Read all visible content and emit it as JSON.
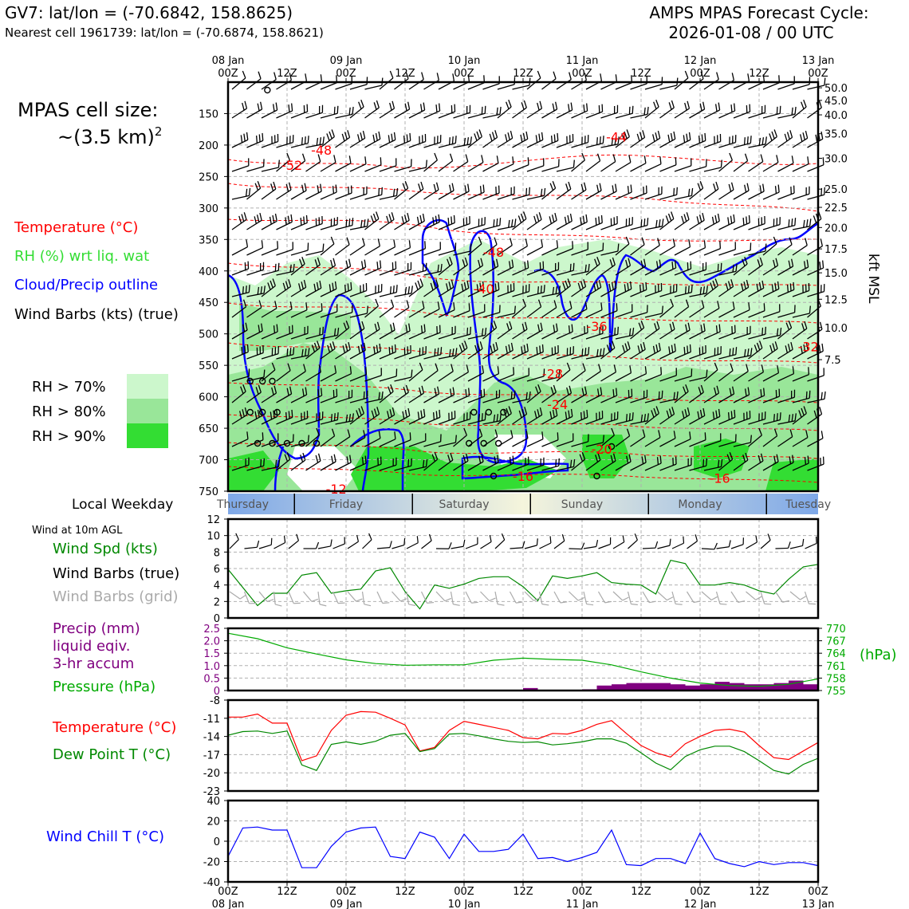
{
  "header": {
    "left_line1": "GV7: lat/lon = (-70.6842, 158.8625)",
    "left_line2": "Nearest cell 1961739: lat/lon = (-70.6874, 158.8621)",
    "right_line1": "AMPS MPAS Forecast Cycle:",
    "right_line2": "2026-01-08 / 00 UTC"
  },
  "side": {
    "cell_size_line1": "MPAS cell size:",
    "cell_size_line2": "~(3.5 km)",
    "cell_size_sup": "2",
    "legend_temp": "Temperature (°C)",
    "legend_rh": "RH (%) wrt liq. wat",
    "legend_cloud": "Cloud/Precip outline",
    "legend_wind": "Wind Barbs (kts) (true)",
    "rh70": "RH > 70%",
    "rh80": "RH > 80%",
    "rh90": "RH > 90%",
    "local_weekday": "Local Weekday",
    "wind10m": "Wind at 10m AGL",
    "wind_spd": "Wind Spd (kts)",
    "wind_barbs_true": "Wind Barbs (true)",
    "wind_barbs_grid": "Wind Barbs (grid)",
    "precip_l1": "Precip (mm)",
    "precip_l2": "liquid eqiv.",
    "precip_l3": "3-hr accum",
    "pressure": "Pressure (hPa)",
    "temperature": "Temperature (°C)",
    "dewpoint": "Dew Point T (°C)",
    "windchill": "Wind Chill T (°C)",
    "kft": "kft MSL",
    "hpa": "(hPa)"
  },
  "colors": {
    "temp": "#ff0000",
    "rh_label": "#33dd33",
    "cloud": "#0000ff",
    "rh70": "#ccf7cc",
    "rh80": "#99e699",
    "rh90": "#33dd33",
    "green_line": "#008800",
    "pressure_line": "#00aa00",
    "precip": "#800080",
    "grey": "#aaaaaa"
  },
  "time_axis": {
    "top_labels": [
      {
        "t": 0,
        "l1": "08 Jan",
        "l2": "00Z"
      },
      {
        "t": 12,
        "l1": "",
        "l2": "12Z"
      },
      {
        "t": 24,
        "l1": "09 Jan",
        "l2": "00Z"
      },
      {
        "t": 36,
        "l1": "",
        "l2": "12Z"
      },
      {
        "t": 48,
        "l1": "10 Jan",
        "l2": "00Z"
      },
      {
        "t": 60,
        "l1": "",
        "l2": "12Z"
      },
      {
        "t": 72,
        "l1": "11 Jan",
        "l2": "00Z"
      },
      {
        "t": 84,
        "l1": "",
        "l2": "12Z"
      },
      {
        "t": 96,
        "l1": "12 Jan",
        "l2": "00Z"
      },
      {
        "t": 108,
        "l1": "",
        "l2": "12Z"
      },
      {
        "t": 120,
        "l1": "13 Jan",
        "l2": "00Z"
      }
    ],
    "bottom_labels": [
      {
        "t": 0,
        "l1": "00Z",
        "l2": "08 Jan"
      },
      {
        "t": 12,
        "l1": "12Z",
        "l2": ""
      },
      {
        "t": 24,
        "l1": "00Z",
        "l2": "09 Jan"
      },
      {
        "t": 36,
        "l1": "12Z",
        "l2": ""
      },
      {
        "t": 48,
        "l1": "00Z",
        "l2": "10 Jan"
      },
      {
        "t": 60,
        "l1": "12Z",
        "l2": ""
      },
      {
        "t": 72,
        "l1": "00Z",
        "l2": "11 Jan"
      },
      {
        "t": 84,
        "l1": "12Z",
        "l2": ""
      },
      {
        "t": 96,
        "l1": "00Z",
        "l2": "12 Jan"
      },
      {
        "t": 108,
        "l1": "12Z",
        "l2": ""
      },
      {
        "t": 120,
        "l1": "00Z",
        "l2": "13 Jan"
      }
    ],
    "weekdays": [
      {
        "t": 3,
        "name": "Thursday"
      },
      {
        "t": 24,
        "name": "Friday"
      },
      {
        "t": 48,
        "name": "Saturday"
      },
      {
        "t": 72,
        "name": "Sunday"
      },
      {
        "t": 96,
        "name": "Monday"
      },
      {
        "t": 118,
        "name": "Tuesday"
      }
    ],
    "weekday_dividers": [
      13.5,
      37.5,
      61.5,
      85.5,
      109.5
    ]
  },
  "chart_data": [
    {
      "type": "heatmap",
      "title": "Time-height cross section",
      "ylabel_left": "Pressure (hPa)",
      "ylabel_right": "kft MSL",
      "ylim": [
        100,
        750
      ],
      "y_ticks": [
        150,
        200,
        250,
        300,
        350,
        400,
        450,
        500,
        550,
        600,
        650,
        700,
        750
      ],
      "right_ticks": [
        {
          "label": "50.0",
          "p": 109
        },
        {
          "label": "45.0",
          "p": 129
        },
        {
          "label": "40.0",
          "p": 152
        },
        {
          "label": "35.0",
          "p": 182
        },
        {
          "label": "30.0",
          "p": 221
        },
        {
          "label": "25.0",
          "p": 270
        },
        {
          "label": "22.5",
          "p": 299
        },
        {
          "label": "20.0",
          "p": 331
        },
        {
          "label": "17.5",
          "p": 365
        },
        {
          "label": "15.0",
          "p": 403
        },
        {
          "label": "12.5",
          "p": 445
        },
        {
          "label": "10.0",
          "p": 490
        },
        {
          "label": "7.5",
          "p": 541
        }
      ],
      "temp_labels": [
        {
          "t": 19,
          "p": 208,
          "v": "-48"
        },
        {
          "t": 13,
          "p": 232,
          "v": "-52"
        },
        {
          "t": 79,
          "p": 187,
          "v": "-44"
        },
        {
          "t": 122,
          "p": 288,
          "v": "-52"
        },
        {
          "t": 54,
          "p": 370,
          "v": "-48"
        },
        {
          "t": 52,
          "p": 428,
          "v": "-40"
        },
        {
          "t": 75,
          "p": 488,
          "v": "-36"
        },
        {
          "t": 118,
          "p": 520,
          "v": "-32"
        },
        {
          "t": 66,
          "p": 563,
          "v": "-28"
        },
        {
          "t": 67,
          "p": 612,
          "v": "-24"
        },
        {
          "t": 76,
          "p": 683,
          "v": "-20"
        },
        {
          "t": 60,
          "p": 726,
          "v": "-16"
        },
        {
          "t": 100,
          "p": 729,
          "v": "-16"
        },
        {
          "t": 22,
          "p": 746,
          "v": "-12"
        }
      ]
    },
    {
      "type": "line",
      "title": "Wind at 10m AGL",
      "ylabel": "Wind Spd (kts)",
      "ylim": [
        0,
        12
      ],
      "y_ticks": [
        0,
        2,
        4,
        6,
        8,
        10,
        12
      ],
      "x": [
        0,
        6,
        9,
        12,
        15,
        18,
        21,
        24,
        27,
        30,
        33,
        36,
        39,
        42,
        45,
        48,
        51,
        54,
        57,
        60,
        63,
        66,
        69,
        72,
        75,
        78,
        81,
        84,
        87,
        90,
        93,
        96,
        99,
        102,
        105,
        108,
        111,
        114,
        117,
        120
      ],
      "series": [
        {
          "name": "Wind Spd (kts)",
          "values": [
            5.9,
            1.5,
            3.0,
            3.0,
            5.2,
            5.5,
            3.0,
            3.3,
            3.5,
            5.7,
            6.1,
            3.2,
            1.1,
            4.0,
            3.6,
            4.1,
            4.8,
            5.0,
            5.0,
            3.8,
            2.1,
            5.1,
            4.8,
            5.1,
            5.5,
            4.3,
            4.1,
            4.0,
            2.9,
            7.0,
            6.6,
            4.0,
            4.0,
            4.3,
            4.0,
            3.3,
            2.9,
            4.7,
            6.2,
            6.5
          ]
        }
      ]
    },
    {
      "type": "bar",
      "title": "Precip (mm) liquid eqiv. 3-hr accum",
      "ylabel": "Precip (mm)",
      "ylim": [
        0,
        2.5
      ],
      "y_ticks": [
        0,
        0.5,
        1.0,
        1.5,
        2.0,
        2.5
      ],
      "x": [
        0,
        3,
        6,
        9,
        12,
        15,
        18,
        21,
        24,
        27,
        30,
        33,
        36,
        39,
        42,
        45,
        48,
        51,
        54,
        57,
        60,
        63,
        66,
        69,
        72,
        75,
        78,
        81,
        84,
        87,
        90,
        93,
        96,
        99,
        102,
        105,
        108,
        111,
        114,
        117
      ],
      "values": [
        0,
        0,
        0,
        0,
        0,
        0,
        0,
        0,
        0,
        0,
        0,
        0,
        0,
        0,
        0,
        0,
        0,
        0,
        0,
        0,
        0.1,
        0,
        0,
        0,
        0.05,
        0.2,
        0.25,
        0.3,
        0.3,
        0.3,
        0.25,
        0.2,
        0.25,
        0.35,
        0.3,
        0.25,
        0.25,
        0.3,
        0.4,
        0.25
      ]
    },
    {
      "type": "line",
      "title": "Pressure (hPa)",
      "ylabel": "Pressure (hPa)",
      "ylim": [
        755,
        770
      ],
      "y_ticks": [
        755,
        758,
        761,
        764,
        767,
        770
      ],
      "x": [
        0,
        6,
        12,
        18,
        24,
        30,
        36,
        42,
        48,
        54,
        60,
        66,
        72,
        78,
        84,
        90,
        96,
        102,
        108,
        114,
        120
      ],
      "series": [
        {
          "name": "Pressure",
          "values": [
            768.8,
            767.5,
            765.3,
            763.8,
            762.4,
            761.5,
            761.1,
            761.2,
            761.2,
            762.3,
            762.8,
            762.5,
            762.3,
            761.2,
            759.5,
            758.0,
            756.8,
            756.2,
            756.0,
            756.5,
            757.8
          ]
        }
      ]
    },
    {
      "type": "line",
      "title": "Temperature / Dew Point",
      "ylabel": "°C",
      "ylim": [
        -23,
        -8
      ],
      "y_ticks": [
        -23,
        -20,
        -17,
        -14,
        -11,
        -8
      ],
      "x": [
        0,
        3,
        6,
        9,
        12,
        15,
        18,
        21,
        24,
        27,
        30,
        33,
        36,
        39,
        42,
        45,
        48,
        51,
        54,
        57,
        60,
        63,
        66,
        69,
        72,
        75,
        78,
        81,
        84,
        87,
        90,
        93,
        96,
        99,
        102,
        105,
        108,
        111,
        114,
        117,
        120
      ],
      "series": [
        {
          "name": "Temperature (°C)",
          "values": [
            -10.8,
            -10.8,
            -10.3,
            -11.8,
            -11.8,
            -18.0,
            -17.2,
            -13.0,
            -10.5,
            -9.9,
            -10.0,
            -11.0,
            -12.1,
            -16.4,
            -15.8,
            -13.0,
            -11.5,
            -12.0,
            -12.5,
            -13.0,
            -14.2,
            -14.4,
            -13.5,
            -13.6,
            -13.0,
            -12.0,
            -11.4,
            -13.5,
            -15.5,
            -16.7,
            -17.4,
            -15.2,
            -14.0,
            -13.0,
            -12.8,
            -13.3,
            -15.5,
            -17.5,
            -17.8,
            -16.4,
            -15.0
          ]
        },
        {
          "name": "Dew Point T (°C)",
          "values": [
            -13.8,
            -13.2,
            -13.1,
            -13.5,
            -13.1,
            -18.7,
            -19.6,
            -15.3,
            -14.9,
            -15.3,
            -14.8,
            -13.8,
            -13.5,
            -16.5,
            -16.0,
            -13.6,
            -13.5,
            -13.9,
            -14.4,
            -14.8,
            -15.0,
            -14.9,
            -15.4,
            -15.2,
            -14.9,
            -14.4,
            -14.4,
            -15.1,
            -16.7,
            -18.4,
            -19.5,
            -17.3,
            -16.2,
            -15.6,
            -15.6,
            -16.5,
            -18.0,
            -19.6,
            -20.2,
            -18.6,
            -17.6
          ]
        }
      ]
    },
    {
      "type": "line",
      "title": "Wind Chill T (°C)",
      "ylabel": "Wind Chill T (°C)",
      "ylim": [
        -40,
        40
      ],
      "y_ticks": [
        -40,
        -20,
        0,
        20,
        40
      ],
      "x": [
        0,
        3,
        6,
        9,
        12,
        15,
        18,
        21,
        24,
        27,
        30,
        33,
        36,
        39,
        42,
        45,
        48,
        51,
        54,
        57,
        60,
        63,
        66,
        69,
        72,
        75,
        78,
        81,
        84,
        87,
        90,
        93,
        96,
        99,
        102,
        105,
        108,
        111,
        114,
        117,
        120
      ],
      "series": [
        {
          "name": "Wind Chill T (°C)",
          "values": [
            -15,
            13,
            14,
            11,
            11,
            -26,
            -26,
            -5,
            9,
            13,
            14,
            -15,
            -17,
            9,
            4,
            -17,
            7,
            -10,
            -10,
            -8,
            7,
            -17,
            -16,
            -20,
            -16,
            -11,
            11,
            -23,
            -24,
            -17,
            -17,
            -22,
            8,
            -17,
            -22,
            -25,
            -20,
            -23,
            -21,
            -21,
            -24
          ]
        }
      ]
    }
  ]
}
